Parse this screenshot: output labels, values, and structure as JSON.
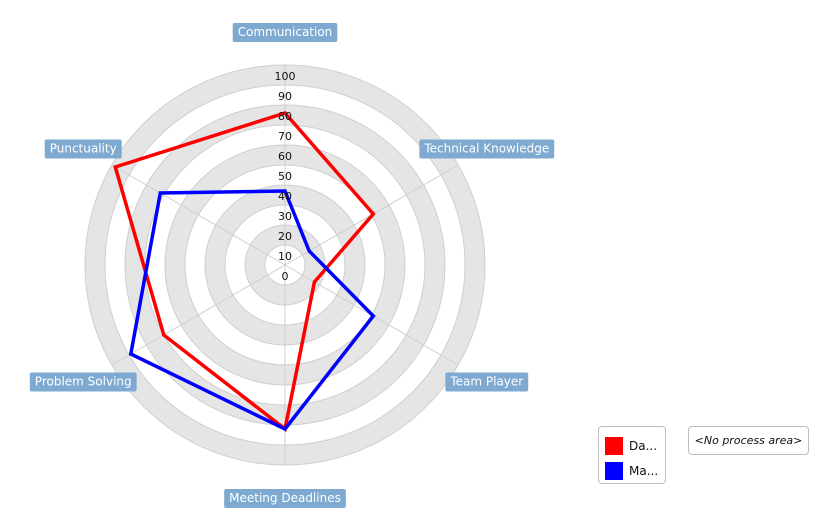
{
  "chart_data": {
    "type": "radar",
    "axes": [
      "Communication",
      "Technical Knowledge",
      "Team Player",
      "Meeting Deadlines",
      "Problem Solving",
      "Punctuality"
    ],
    "ticks": [
      "0",
      "10",
      "20",
      "30",
      "40",
      "50",
      "60",
      "70",
      "80",
      "90",
      "100"
    ],
    "range": [
      0,
      100
    ],
    "grid": "concentric-circles",
    "legend_position": "bottom-right",
    "series": [
      {
        "name": "Da...",
        "color": "#ff0000",
        "values": [
          76,
          51,
          17,
          82,
          70,
          98
        ]
      },
      {
        "name": "Ma...",
        "color": "#0000ff",
        "values": [
          37,
          14,
          51,
          82,
          89,
          72
        ]
      }
    ]
  },
  "colors": {
    "band_fill": "#e5e5e5",
    "gridline": "#cfcfcf",
    "axis_label_bg": "#7ea9d1"
  },
  "no_process_area": "<No process area>"
}
